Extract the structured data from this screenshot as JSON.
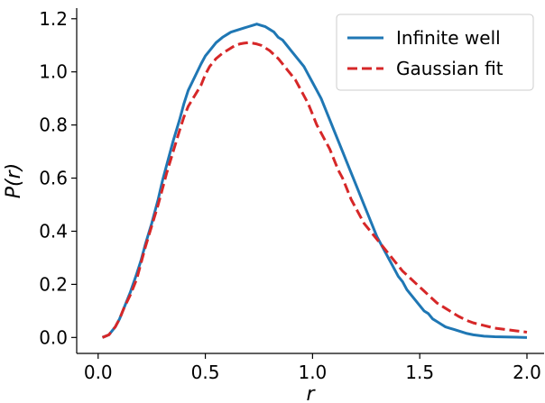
{
  "chart_data": {
    "type": "line",
    "xlabel": "r",
    "ylabel": "P(r)",
    "xlim": [
      -0.1,
      2.08
    ],
    "ylim": [
      -0.06,
      1.24
    ],
    "xticks": [
      0.0,
      0.5,
      1.0,
      1.5,
      2.0
    ],
    "xtick_labels": [
      "0.0",
      "0.5",
      "1.0",
      "1.5",
      "2.0"
    ],
    "yticks": [
      0.0,
      0.2,
      0.4,
      0.6,
      0.8,
      1.0,
      1.2
    ],
    "ytick_labels": [
      "0.0",
      "0.2",
      "0.4",
      "0.6",
      "0.8",
      "1.0",
      "1.2"
    ],
    "grid": false,
    "legend": {
      "position": "top-right",
      "entries": [
        "Infinite well",
        "Gaussian fit"
      ]
    },
    "series": [
      {
        "name": "Infinite well",
        "color": "#1f77b4",
        "style": "solid",
        "x": [
          0.02,
          0.05,
          0.08,
          0.1,
          0.12,
          0.15,
          0.18,
          0.2,
          0.22,
          0.25,
          0.28,
          0.3,
          0.32,
          0.35,
          0.38,
          0.4,
          0.42,
          0.45,
          0.48,
          0.5,
          0.52,
          0.55,
          0.58,
          0.6,
          0.62,
          0.64,
          0.66,
          0.68,
          0.7,
          0.72,
          0.74,
          0.76,
          0.78,
          0.8,
          0.82,
          0.84,
          0.86,
          0.88,
          0.9,
          0.92,
          0.94,
          0.96,
          0.98,
          1.0,
          1.02,
          1.04,
          1.06,
          1.08,
          1.1,
          1.12,
          1.14,
          1.16,
          1.18,
          1.2,
          1.22,
          1.24,
          1.26,
          1.28,
          1.3,
          1.32,
          1.34,
          1.36,
          1.38,
          1.4,
          1.42,
          1.44,
          1.46,
          1.48,
          1.5,
          1.52,
          1.54,
          1.56,
          1.58,
          1.6,
          1.62,
          1.64,
          1.66,
          1.68,
          1.7,
          1.72,
          1.75,
          1.8,
          1.85,
          1.9,
          1.95,
          2.0
        ],
        "values": [
          0.0,
          0.01,
          0.04,
          0.07,
          0.11,
          0.17,
          0.24,
          0.29,
          0.35,
          0.43,
          0.52,
          0.59,
          0.65,
          0.74,
          0.82,
          0.88,
          0.93,
          0.98,
          1.03,
          1.06,
          1.08,
          1.11,
          1.13,
          1.14,
          1.15,
          1.155,
          1.16,
          1.165,
          1.17,
          1.175,
          1.18,
          1.175,
          1.17,
          1.16,
          1.15,
          1.13,
          1.12,
          1.1,
          1.08,
          1.06,
          1.04,
          1.02,
          0.99,
          0.96,
          0.93,
          0.9,
          0.86,
          0.82,
          0.78,
          0.74,
          0.7,
          0.66,
          0.62,
          0.58,
          0.54,
          0.5,
          0.46,
          0.42,
          0.38,
          0.35,
          0.32,
          0.29,
          0.26,
          0.23,
          0.21,
          0.18,
          0.16,
          0.14,
          0.12,
          0.1,
          0.09,
          0.07,
          0.06,
          0.05,
          0.04,
          0.035,
          0.03,
          0.025,
          0.02,
          0.015,
          0.01,
          0.005,
          0.003,
          0.002,
          0.001,
          0.0
        ]
      },
      {
        "name": "Gaussian fit",
        "color": "#d62728",
        "style": "dashed",
        "x": [
          0.02,
          0.05,
          0.08,
          0.1,
          0.12,
          0.15,
          0.18,
          0.2,
          0.22,
          0.25,
          0.28,
          0.3,
          0.32,
          0.35,
          0.38,
          0.4,
          0.42,
          0.45,
          0.48,
          0.5,
          0.52,
          0.55,
          0.58,
          0.6,
          0.62,
          0.64,
          0.66,
          0.68,
          0.7,
          0.72,
          0.74,
          0.76,
          0.78,
          0.8,
          0.82,
          0.84,
          0.86,
          0.88,
          0.9,
          0.92,
          0.94,
          0.96,
          0.98,
          1.0,
          1.02,
          1.04,
          1.06,
          1.08,
          1.1,
          1.12,
          1.14,
          1.16,
          1.18,
          1.2,
          1.22,
          1.24,
          1.26,
          1.28,
          1.3,
          1.32,
          1.34,
          1.36,
          1.38,
          1.4,
          1.42,
          1.44,
          1.46,
          1.48,
          1.5,
          1.52,
          1.54,
          1.56,
          1.58,
          1.6,
          1.62,
          1.64,
          1.66,
          1.68,
          1.7,
          1.72,
          1.75,
          1.8,
          1.85,
          1.9,
          1.95,
          2.0
        ],
        "values": [
          0.0,
          0.01,
          0.04,
          0.07,
          0.11,
          0.16,
          0.22,
          0.28,
          0.34,
          0.42,
          0.5,
          0.56,
          0.62,
          0.7,
          0.78,
          0.83,
          0.87,
          0.91,
          0.95,
          0.99,
          1.02,
          1.05,
          1.07,
          1.08,
          1.09,
          1.1,
          1.105,
          1.108,
          1.11,
          1.108,
          1.105,
          1.1,
          1.09,
          1.08,
          1.065,
          1.05,
          1.03,
          1.01,
          0.99,
          0.97,
          0.94,
          0.91,
          0.88,
          0.84,
          0.8,
          0.77,
          0.74,
          0.71,
          0.67,
          0.63,
          0.6,
          0.56,
          0.52,
          0.49,
          0.46,
          0.43,
          0.41,
          0.39,
          0.37,
          0.35,
          0.33,
          0.31,
          0.29,
          0.27,
          0.25,
          0.235,
          0.22,
          0.205,
          0.19,
          0.175,
          0.16,
          0.145,
          0.13,
          0.12,
          0.11,
          0.1,
          0.09,
          0.08,
          0.072,
          0.064,
          0.055,
          0.045,
          0.035,
          0.03,
          0.025,
          0.02
        ]
      }
    ]
  }
}
